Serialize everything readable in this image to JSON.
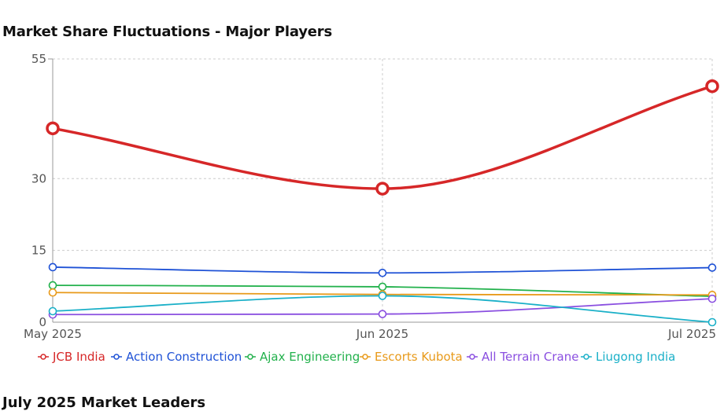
{
  "page": {
    "title": "Market Share Fluctuations - Major Players",
    "next_section_title": "July 2025 Market Leaders"
  },
  "chart_data": {
    "type": "line",
    "title": "Market Share Fluctuations - Major Players",
    "xlabel": "",
    "ylabel": "",
    "categories": [
      "May 2025",
      "Jun 2025",
      "Jul 2025"
    ],
    "ylim": [
      0,
      55
    ],
    "yticks": [
      0,
      15,
      30,
      55
    ],
    "grid": true,
    "legend_position": "bottom",
    "smooth": true,
    "series": [
      {
        "name": "JCB India",
        "color": "#d62728",
        "values": [
          40.5,
          27.9,
          49.3
        ],
        "emphasis": true
      },
      {
        "name": "Action Construction",
        "color": "#1f52d6",
        "values": [
          11.5,
          10.3,
          11.4
        ]
      },
      {
        "name": "Ajax Engineering",
        "color": "#22b14c",
        "values": [
          7.7,
          7.4,
          5.4
        ]
      },
      {
        "name": "Escorts Kubota",
        "color": "#e89a1a",
        "values": [
          6.2,
          5.8,
          5.7
        ]
      },
      {
        "name": "All Terrain Crane",
        "color": "#8a4fe0",
        "values": [
          1.6,
          1.7,
          4.9
        ]
      },
      {
        "name": "Liugong India",
        "color": "#1ab0c8",
        "values": [
          2.3,
          5.5,
          0.0
        ]
      }
    ]
  }
}
